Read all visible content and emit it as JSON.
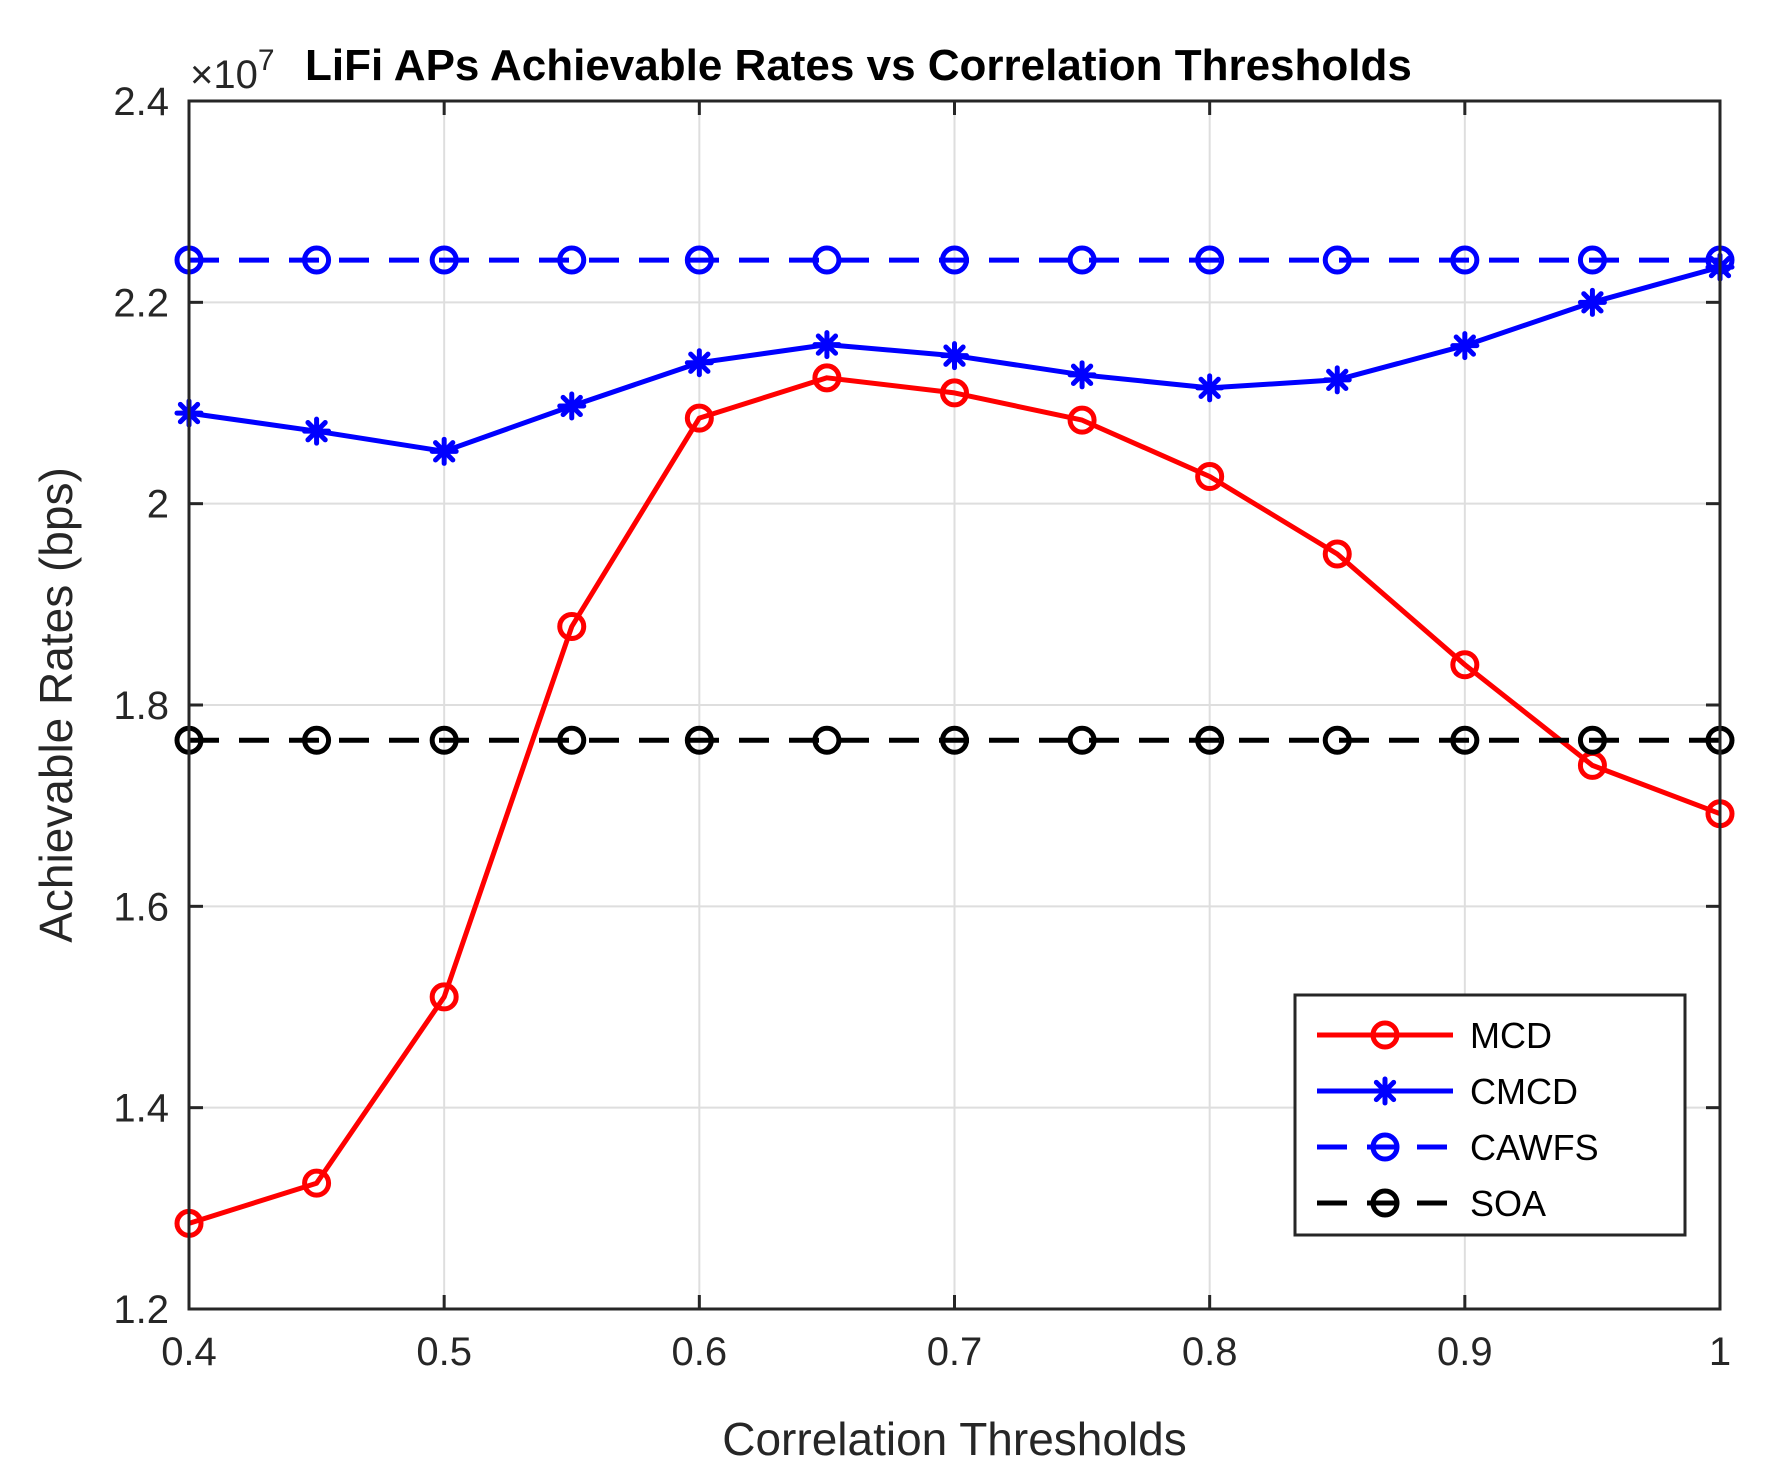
{
  "chart_data": {
    "type": "line",
    "title": "LiFi APs Achievable Rates vs Correlation Thresholds",
    "exponent_prefix": "×10",
    "exponent_power": "7",
    "xlabel": "Correlation Thresholds",
    "ylabel": "Achievable Rates (bps)",
    "xlim": [
      0.4,
      1.0
    ],
    "ylim": [
      1.2,
      2.4
    ],
    "grid": true,
    "legend_position": "bottom-right",
    "x_ticks": [
      "0.4",
      "0.5",
      "0.6",
      "0.7",
      "0.8",
      "0.9",
      "1"
    ],
    "y_ticks": [
      "1.2",
      "1.4",
      "1.6",
      "1.8",
      "2",
      "2.2",
      "2.4"
    ],
    "x": [
      0.4,
      0.45,
      0.5,
      0.55,
      0.6,
      0.65,
      0.7,
      0.75,
      0.8,
      0.85,
      0.9,
      0.95,
      1.0
    ],
    "series": [
      {
        "name": "MCD",
        "color": "#ff0000",
        "line": "solid",
        "marker": "circle",
        "values": [
          1.285,
          1.325,
          1.51,
          1.878,
          2.085,
          2.125,
          2.11,
          2.083,
          2.027,
          1.95,
          1.84,
          1.74,
          1.692
        ]
      },
      {
        "name": "CMCD",
        "color": "#0000ff",
        "line": "solid",
        "marker": "asterisk",
        "values": [
          2.09,
          2.072,
          2.052,
          2.097,
          2.14,
          2.158,
          2.147,
          2.128,
          2.115,
          2.123,
          2.157,
          2.2,
          2.235
        ]
      },
      {
        "name": "CAWFS",
        "color": "#0000ff",
        "line": "dashed",
        "marker": "circle",
        "values": [
          2.242,
          2.242,
          2.242,
          2.242,
          2.242,
          2.242,
          2.242,
          2.242,
          2.242,
          2.242,
          2.242,
          2.242,
          2.242
        ]
      },
      {
        "name": "SOA",
        "color": "#000000",
        "line": "dashed",
        "marker": "circle",
        "values": [
          1.765,
          1.765,
          1.765,
          1.765,
          1.765,
          1.765,
          1.765,
          1.765,
          1.765,
          1.765,
          1.765,
          1.765,
          1.765
        ]
      }
    ]
  }
}
